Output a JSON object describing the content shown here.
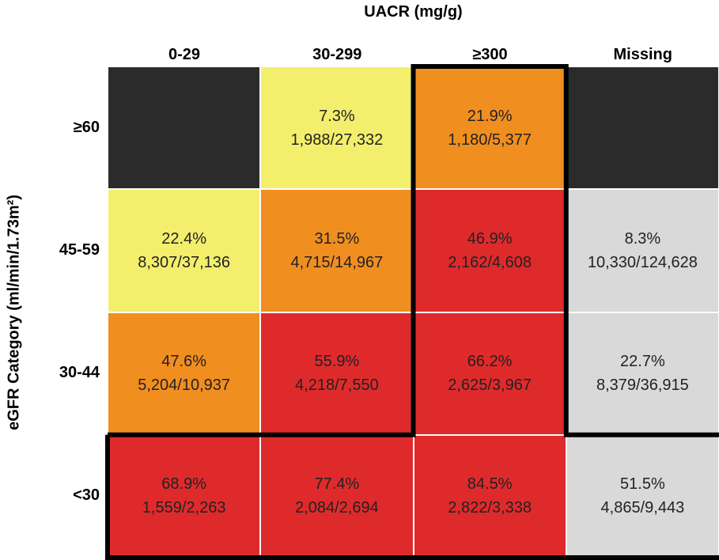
{
  "header": {
    "title": "UACR (mg/g)",
    "y_label": "eGFR Category (ml/min/1.73m²)"
  },
  "table": {
    "columns": [
      "0-29",
      "30-299",
      "≥300",
      "Missing"
    ],
    "rows": [
      {
        "label": "≥60",
        "cells": [
          {
            "color": "#2b2b2b"
          },
          {
            "percent": "7.3%",
            "fraction": "1,988/27,332",
            "color": "#f3ef6c"
          },
          {
            "percent": "21.9%",
            "fraction": "1,180/5,377",
            "color": "#f18e20"
          },
          {
            "color": "#2b2b2b"
          }
        ]
      },
      {
        "label": "45-59",
        "cells": [
          {
            "percent": "22.4%",
            "fraction": "8,307/37,136",
            "color": "#f3ef6c"
          },
          {
            "percent": "31.5%",
            "fraction": "4,715/14,967",
            "color": "#f18e20"
          },
          {
            "percent": "46.9%",
            "fraction": "2,162/4,608",
            "color": "#df2a2c"
          },
          {
            "percent": "8.3%",
            "fraction": "10,330/124,628",
            "color": "#d9d9d9"
          }
        ]
      },
      {
        "label": "30-44",
        "cells": [
          {
            "percent": "47.6%",
            "fraction": "5,204/10,937",
            "color": "#f18e20"
          },
          {
            "percent": "55.9%",
            "fraction": "4,218/7,550",
            "color": "#df2a2c"
          },
          {
            "percent": "66.2%",
            "fraction": "2,625/3,967",
            "color": "#df2a2c"
          },
          {
            "percent": "22.7%",
            "fraction": "8,379/36,915",
            "color": "#d9d9d9"
          }
        ]
      },
      {
        "label": "<30",
        "cells": [
          {
            "percent": "68.9%",
            "fraction": "1,559/2,263",
            "color": "#df2a2c"
          },
          {
            "percent": "77.4%",
            "fraction": "2,084/2,694",
            "color": "#df2a2c"
          },
          {
            "percent": "84.5%",
            "fraction": "2,822/3,338",
            "color": "#df2a2c"
          },
          {
            "percent": "51.5%",
            "fraction": "4,865/9,443",
            "color": "#d9d9d9"
          }
        ]
      }
    ]
  }
}
